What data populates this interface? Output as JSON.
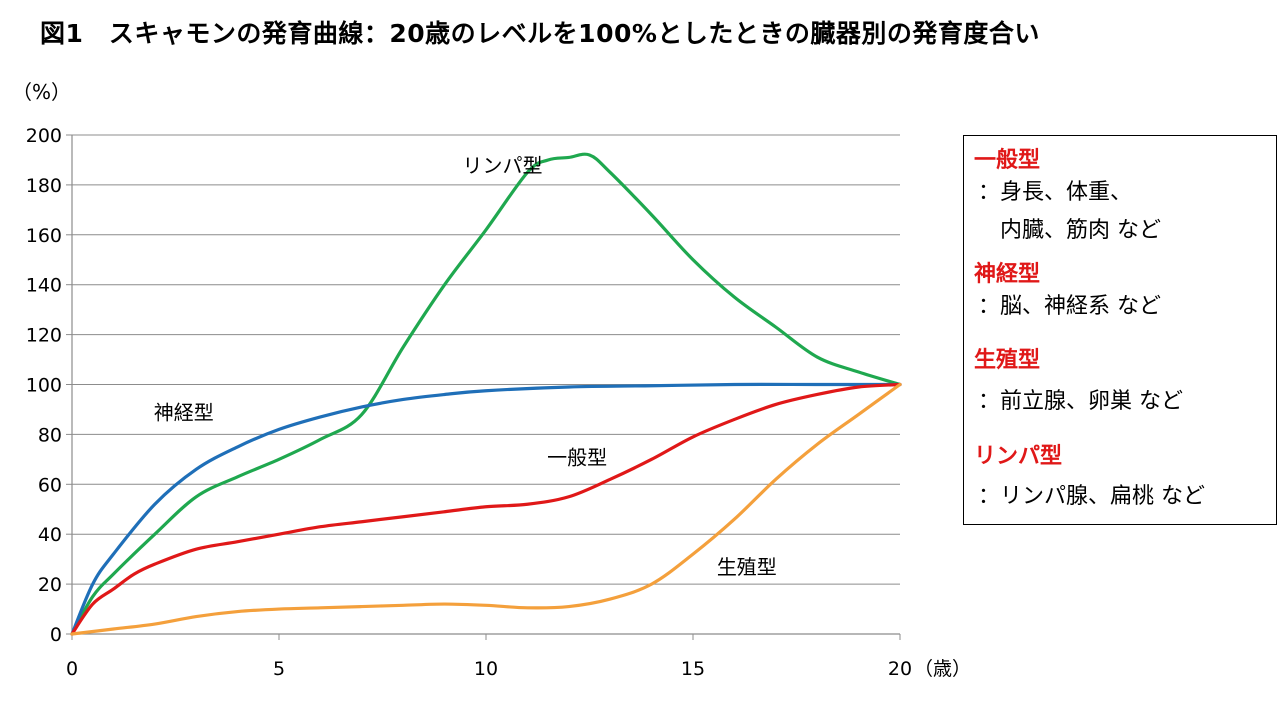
{
  "title": "図1　スキャモンの発育曲線：20歳のレベルを100%としたときの臓器別の発育度合い",
  "y_unit": "（%）",
  "x_unit": "（歳）",
  "chart_data": {
    "type": "line",
    "title": "図1　スキャモンの発育曲線：20歳のレベルを100%としたときの臓器別の発育度合い",
    "xlabel": "（歳）",
    "ylabel": "（%）",
    "xlim": [
      0,
      20
    ],
    "ylim": [
      0,
      200
    ],
    "x_ticks": [
      0,
      5,
      10,
      15,
      20
    ],
    "y_ticks": [
      0,
      20,
      40,
      60,
      80,
      100,
      120,
      140,
      160,
      180,
      200
    ],
    "grid": "horizontal",
    "series": [
      {
        "name": "リンパ型",
        "color": "#1fa84f",
        "x": [
          0,
          0.5,
          1,
          2,
          3,
          4,
          5,
          6,
          7,
          8,
          9,
          10,
          11,
          11.5,
          12,
          12.5,
          13,
          14,
          15,
          16,
          17,
          18,
          19,
          20
        ],
        "y": [
          0,
          15,
          24,
          40,
          55,
          63,
          70,
          78,
          88,
          115,
          140,
          162,
          185,
          190,
          191,
          192,
          185,
          168,
          150,
          135,
          123,
          111,
          105,
          100
        ]
      },
      {
        "name": "神経型",
        "color": "#1f6fb8",
        "x": [
          0,
          0.5,
          1,
          2,
          3,
          4,
          5,
          6,
          7,
          8,
          9,
          10,
          12,
          14,
          16,
          18,
          20
        ],
        "y": [
          0,
          20,
          32,
          52,
          66,
          75,
          82,
          87,
          91,
          94,
          96,
          97.5,
          99,
          99.5,
          100,
          100,
          100
        ]
      },
      {
        "name": "一般型",
        "color": "#e01818",
        "x": [
          0,
          0.5,
          1,
          1.5,
          2,
          3,
          4,
          5,
          6,
          7,
          8,
          9,
          10,
          11,
          12,
          13,
          14,
          15,
          16,
          17,
          18,
          19,
          20
        ],
        "y": [
          0,
          12,
          18,
          24,
          28,
          34,
          37,
          40,
          43,
          45,
          47,
          49,
          51,
          52,
          55,
          62,
          70,
          79,
          86,
          92,
          96,
          99,
          100
        ]
      },
      {
        "name": "生殖型",
        "color": "#f4a03c",
        "x": [
          0,
          1,
          2,
          3,
          4,
          5,
          6,
          7,
          8,
          9,
          10,
          11,
          12,
          13,
          14,
          15,
          16,
          17,
          18,
          19,
          20
        ],
        "y": [
          0,
          2,
          4,
          7,
          9,
          10,
          10.5,
          11,
          11.5,
          12,
          11.5,
          10.5,
          11,
          14,
          20,
          32,
          46,
          62,
          76,
          88,
          100
        ]
      }
    ],
    "annotations": [
      {
        "text": "リンパ型",
        "x": 10.4,
        "y": 185
      },
      {
        "text": "神経型",
        "x": 2.7,
        "y": 86
      },
      {
        "text": "一般型",
        "x": 12.2,
        "y": 68
      },
      {
        "text": "生殖型",
        "x": 16.3,
        "y": 24
      }
    ]
  },
  "legend": [
    {
      "heading": "一般型",
      "desc": "：身長、体重、\n　内臓、筋肉 など",
      "color": "#e01818"
    },
    {
      "heading": "神経型",
      "desc": "：脳、神経系 など",
      "color": "#e01818"
    },
    {
      "heading": "生殖型",
      "desc": "：前立腺、卵巣 など",
      "color": "#e01818"
    },
    {
      "heading": "リンパ型",
      "desc": "：リンパ腺、扁桃 など",
      "color": "#e01818"
    }
  ]
}
